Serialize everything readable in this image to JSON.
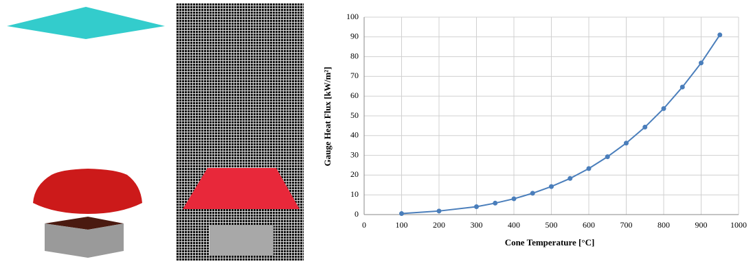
{
  "chart_data": {
    "type": "line",
    "x_label": "Cone Temperature [°C]",
    "y_label": "Gauge Heat Flux [kW/m²]",
    "x": [
      100,
      200,
      300,
      350,
      400,
      450,
      500,
      550,
      600,
      650,
      700,
      750,
      800,
      850,
      900,
      950
    ],
    "series": [
      {
        "color": "#4a7ebb",
        "values": [
          0.5,
          1.8,
          4,
          5.8,
          8,
          10.8,
          14.2,
          18.3,
          23.3,
          29.3,
          36.2,
          44.3,
          53.7,
          64.6,
          76.8,
          91
        ]
      }
    ],
    "xlim": [
      0,
      1000
    ],
    "xticks": [
      0,
      100,
      200,
      300,
      400,
      500,
      600,
      700,
      800,
      900,
      1000
    ],
    "ylim": [
      0,
      100
    ],
    "yticks": [
      0,
      10,
      20,
      30,
      40,
      50,
      60,
      70,
      80,
      90,
      100
    ],
    "grid": true
  }
}
